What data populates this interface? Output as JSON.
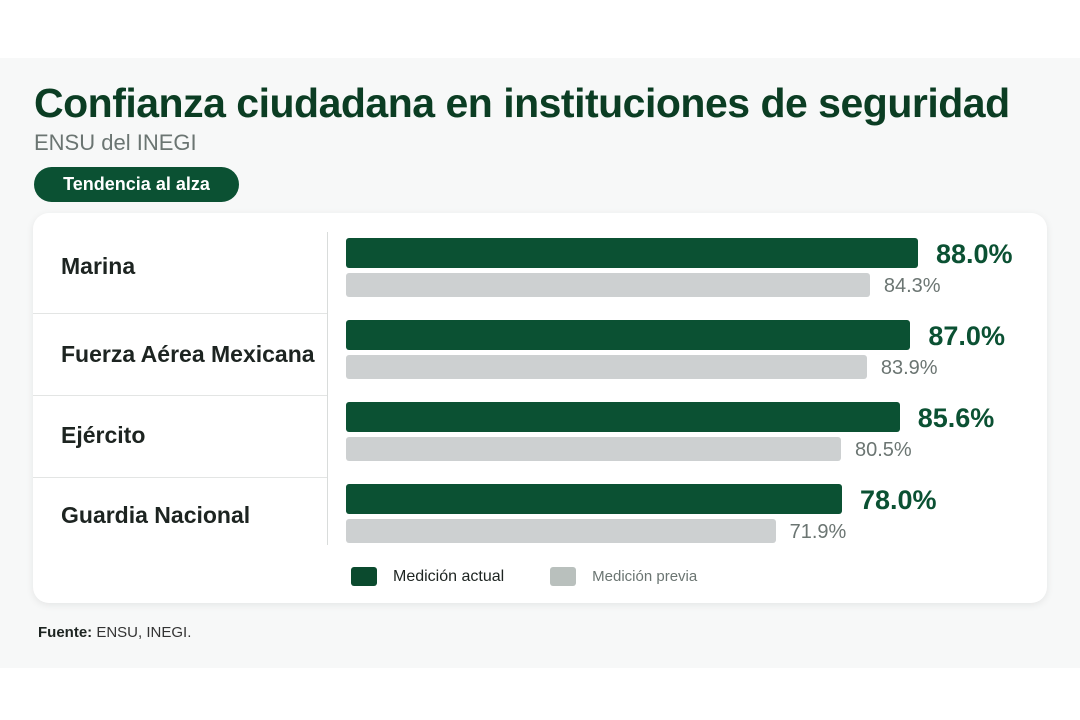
{
  "title": "Confianza ciudadana en instituciones de seguridad",
  "subtitle": "ENSU del INEGI",
  "badge": "Tendencia al alza",
  "source_label": "Fuente:",
  "source_text": "ENSU, INEGI.",
  "chart_data": {
    "type": "bar",
    "orientation": "horizontal",
    "categories": [
      "Marina",
      "Fuerza Aérea Mexicana",
      "Ejército",
      "Guardia Nacional"
    ],
    "series": [
      {
        "name": "Medición actual",
        "values": [
          88.0,
          87.0,
          85.6,
          78.0
        ],
        "labels": [
          "88.0%",
          "87.0%",
          "85.6%",
          "78.0%"
        ],
        "color": "#0b5133"
      },
      {
        "name": "Medición previa",
        "values": [
          84.3,
          83.9,
          80.5,
          71.9
        ],
        "labels": [
          "84.3%",
          "83.9%",
          "80.5%",
          "71.9%"
        ],
        "color": "#cdd0d1"
      }
    ],
    "xlim": [
      0,
      100
    ],
    "legend": "bottom",
    "grid": false
  }
}
